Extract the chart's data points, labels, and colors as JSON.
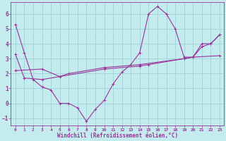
{
  "background_color": "#c4ecee",
  "plot_bg_color": "#c4ecee",
  "grid_color": "#9dd4d8",
  "line_color": "#993399",
  "spine_color": "#993399",
  "xlabel": "Windchill (Refroidissement éolien,°C)",
  "xlim": [
    -0.5,
    23.5
  ],
  "ylim": [
    -1.5,
    6.8
  ],
  "yticks": [
    -1,
    0,
    1,
    2,
    3,
    4,
    5,
    6
  ],
  "xticks": [
    0,
    1,
    2,
    3,
    4,
    5,
    6,
    7,
    8,
    9,
    10,
    11,
    12,
    13,
    14,
    15,
    16,
    17,
    18,
    19,
    20,
    21,
    22,
    23
  ],
  "line1_x": [
    0,
    1,
    2,
    3,
    4,
    5,
    6,
    7,
    8,
    9,
    10,
    11,
    12,
    13,
    14,
    15,
    16,
    17,
    18,
    19,
    20,
    21,
    22,
    23
  ],
  "line1_y": [
    5.3,
    3.4,
    1.6,
    1.1,
    0.9,
    0.0,
    0.0,
    -0.3,
    -1.2,
    -0.4,
    0.2,
    1.3,
    2.1,
    2.6,
    3.4,
    6.0,
    6.5,
    6.0,
    5.0,
    3.1,
    3.1,
    4.0,
    4.0,
    4.6
  ],
  "line2_x": [
    0,
    1,
    3,
    10,
    14,
    15,
    19,
    20,
    21,
    22,
    23
  ],
  "line2_y": [
    3.3,
    1.7,
    1.6,
    2.3,
    2.5,
    2.6,
    3.0,
    3.1,
    3.8,
    4.0,
    4.6
  ],
  "line3_x": [
    0,
    3,
    5,
    6,
    10,
    14,
    19,
    20,
    23
  ],
  "line3_y": [
    2.2,
    2.3,
    1.8,
    2.0,
    2.4,
    2.6,
    3.0,
    3.1,
    3.2
  ]
}
